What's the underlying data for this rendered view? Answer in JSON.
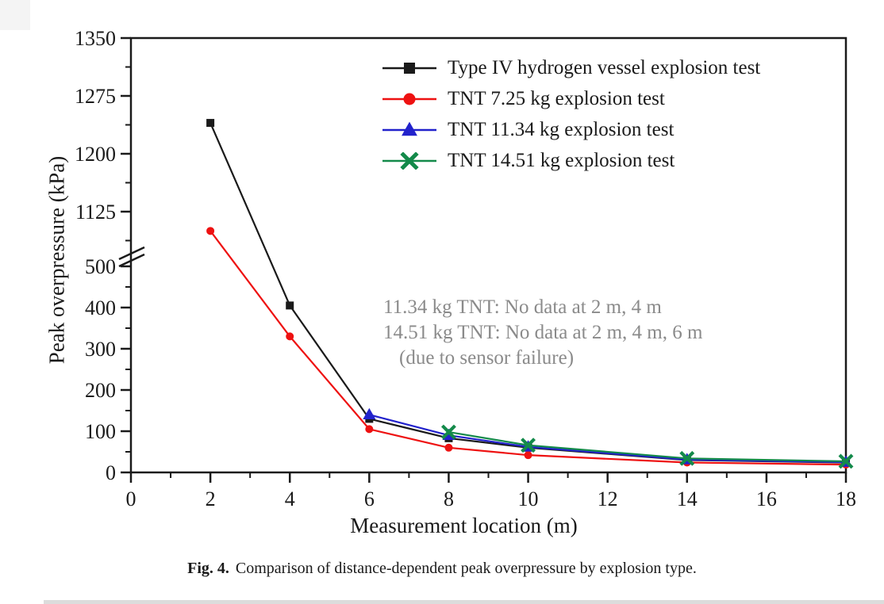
{
  "figure": {
    "caption_label": "Fig. 4.",
    "caption_text": "Comparison of distance-dependent peak overpressure by explosion type."
  },
  "chart_data": {
    "type": "line",
    "xlabel": "Measurement location (m)",
    "ylabel": "Peak overpressure (kPa)",
    "xlim": [
      0,
      18
    ],
    "x_ticks_major": [
      0,
      2,
      4,
      6,
      8,
      10,
      12,
      14,
      16,
      18
    ],
    "x_ticks_minor": [
      1,
      3,
      5,
      7,
      9,
      11,
      13,
      15,
      17
    ],
    "y_axis_break": {
      "lower_max": 500,
      "upper_min": 1125
    },
    "y_ticks_lower_major": [
      0,
      100,
      200,
      300,
      400,
      500
    ],
    "y_ticks_lower_minor": [
      50,
      150,
      250,
      350,
      450
    ],
    "y_ticks_upper_major": [
      1125,
      1200,
      1275,
      1350
    ],
    "y_ticks_upper_minor": [
      1087.5,
      1162.5,
      1237.5,
      1312.5
    ],
    "grid": "off",
    "legend_position": "top-inside",
    "series": [
      {
        "name": "Type IV hydrogen vessel explosion test",
        "color": "#1a1a1a",
        "marker": "square",
        "points": [
          [
            2,
            1240
          ],
          [
            4,
            405
          ],
          [
            6,
            130
          ],
          [
            8,
            83
          ],
          [
            10,
            60
          ],
          [
            14,
            30
          ],
          [
            18,
            24
          ]
        ]
      },
      {
        "name": "TNT 7.25 kg explosion test",
        "color": "#ee1111",
        "marker": "circle",
        "points": [
          [
            2,
            1100
          ],
          [
            4,
            330
          ],
          [
            6,
            105
          ],
          [
            8,
            60
          ],
          [
            10,
            42
          ],
          [
            14,
            24
          ],
          [
            18,
            19
          ]
        ]
      },
      {
        "name": "TNT 11.34 kg explosion test",
        "color": "#2222cc",
        "marker": "triangle",
        "points": [
          [
            6,
            140
          ],
          [
            8,
            90
          ],
          [
            10,
            62
          ],
          [
            14,
            31
          ],
          [
            18,
            25
          ]
        ]
      },
      {
        "name": "TNT 14.51 kg explosion test",
        "color": "#138a4a",
        "marker": "xcross",
        "points": [
          [
            8,
            98
          ],
          [
            10,
            66
          ],
          [
            14,
            34
          ],
          [
            18,
            27
          ]
        ]
      }
    ],
    "annotation": {
      "line1": "11.34 kg TNT: No data at 2 m, 4 m",
      "line2": "14.51 kg TNT: No data at 2 m, 4 m, 6 m",
      "line3": "(due to sensor failure)",
      "color": "#8a8a8a"
    }
  }
}
